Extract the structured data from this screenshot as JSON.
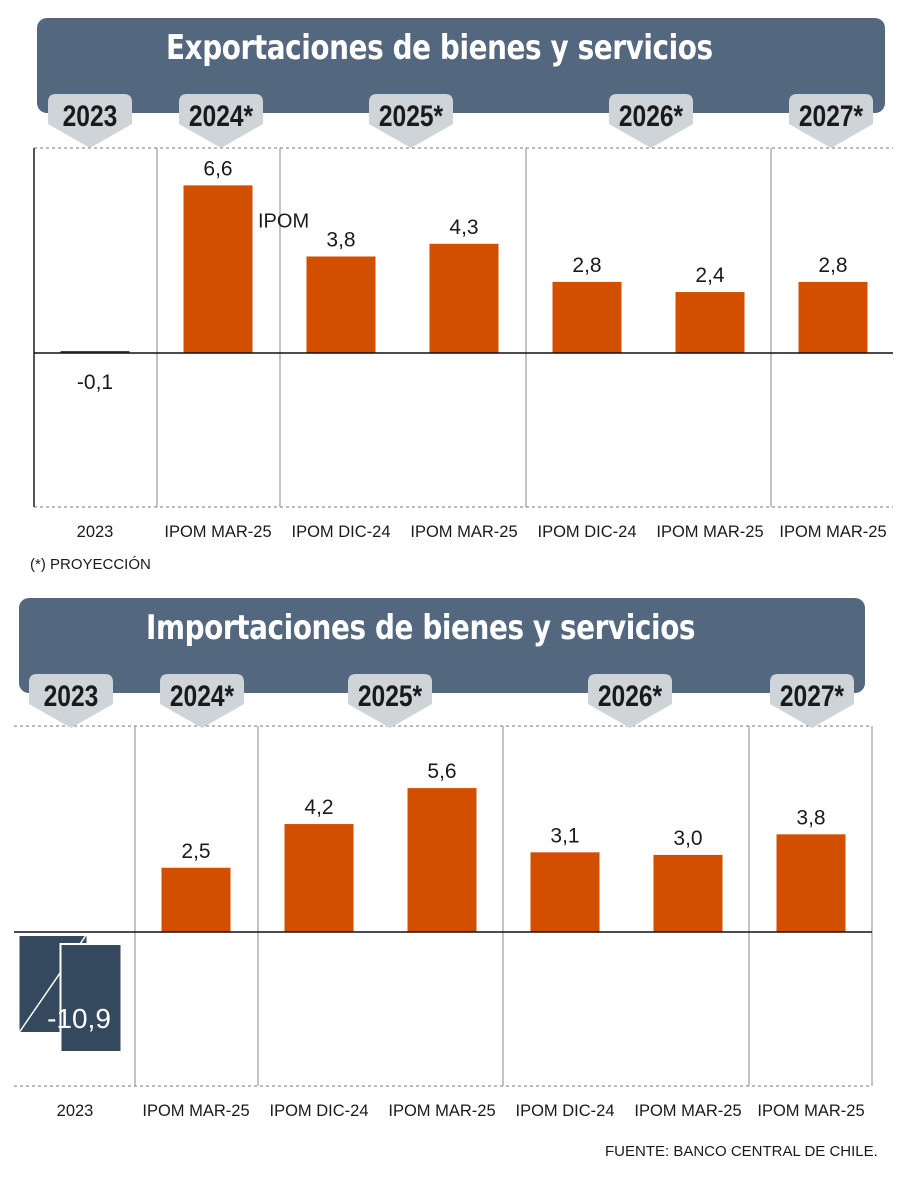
{
  "charts": [
    {
      "title": "Exportaciones de bienes y servicios",
      "footnote": "(*) PROYECCIÓN"
    },
    {
      "title": "Importaciones de bienes y servicios",
      "source": "FUENTE: BANCO CENTRAL DE CHILE."
    }
  ],
  "colors": {
    "bar": "#d24f00",
    "banner": "#53677e",
    "badge": "#cfd4d9",
    "dark_bar": "#34495e"
  },
  "chart_data": [
    {
      "type": "bar",
      "title": "Exportaciones de bienes y servicios",
      "year_groups": [
        "2023",
        "2024*",
        "2025*",
        "2026*",
        "2027*"
      ],
      "categories": [
        "2023",
        "IPOM MAR-25",
        "IPOM DIC-24",
        "IPOM MAR-25",
        "IPOM DIC-24",
        "IPOM MAR-25",
        "IPOM MAR-25"
      ],
      "group_of_category": [
        0,
        1,
        2,
        2,
        3,
        3,
        4
      ],
      "values": [
        -0.1,
        6.6,
        3.8,
        4.3,
        2.8,
        2.4,
        2.8
      ],
      "value_labels": [
        "-0,1",
        "6,6",
        "3,8",
        "4,3",
        "2,8",
        "2,4",
        "2,8"
      ],
      "annotations": [
        "IPOM"
      ],
      "footnote": "(*) PROYECCIÓN"
    },
    {
      "type": "bar",
      "title": "Importaciones de bienes y servicios",
      "year_groups": [
        "2023",
        "2024*",
        "2025*",
        "2026*",
        "2027*"
      ],
      "categories": [
        "2023",
        "IPOM MAR-25",
        "IPOM DIC-24",
        "IPOM MAR-25",
        "IPOM DIC-24",
        "IPOM MAR-25",
        "IPOM MAR-25"
      ],
      "group_of_category": [
        0,
        1,
        2,
        2,
        3,
        3,
        4
      ],
      "values": [
        -10.9,
        2.5,
        4.2,
        5.6,
        3.1,
        3.0,
        3.8
      ],
      "value_labels": [
        "-10,9",
        "2,5",
        "4,2",
        "5,6",
        "3,1",
        "3,0",
        "3,8"
      ],
      "axis_break": true,
      "source": "FUENTE: BANCO CENTRAL DE CHILE."
    }
  ]
}
